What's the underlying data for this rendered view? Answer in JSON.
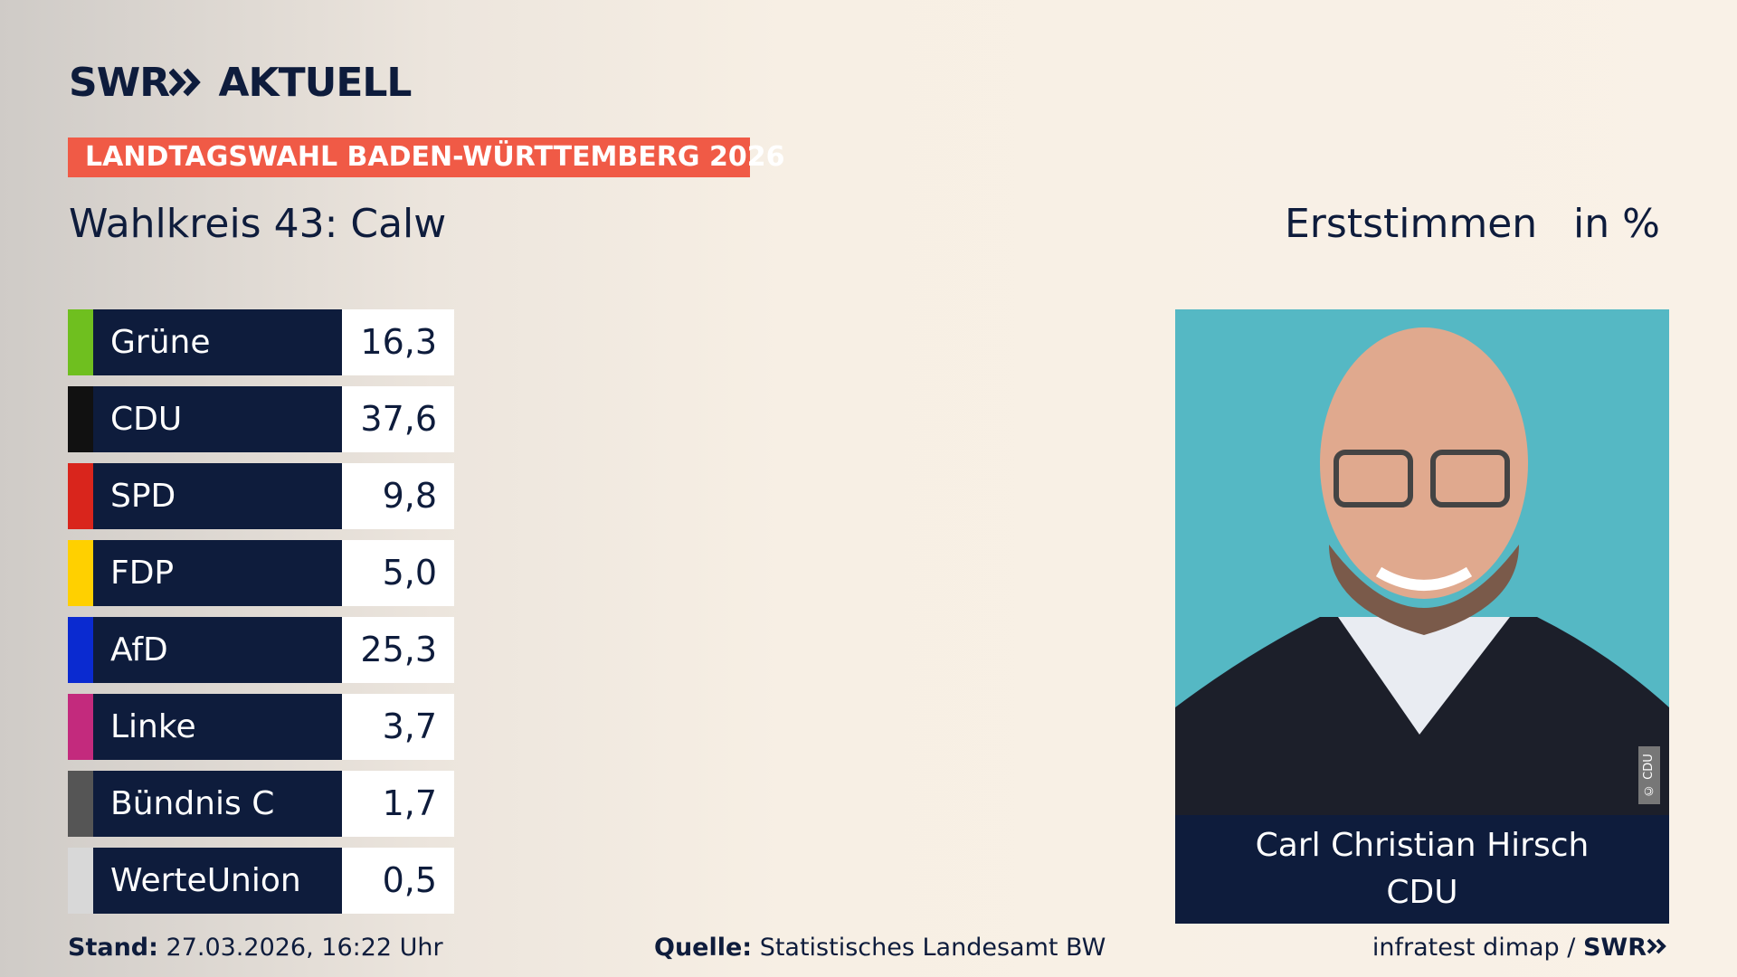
{
  "header": {
    "logo": "SWR",
    "brand": "AKTUELL",
    "banner": "LANDTAGSWAHL BADEN-WÜRTTEMBERG 2026",
    "district": "Wahlkreis 43: Calw",
    "vote_type": "Erststimmen",
    "unit": "in %"
  },
  "table": {
    "rows": [
      {
        "party": "Grüne",
        "color": "#6fbf1f",
        "value": "16,3"
      },
      {
        "party": "CDU",
        "color": "#111111",
        "value": "37,6"
      },
      {
        "party": "SPD",
        "color": "#d9251c",
        "value": "9,8"
      },
      {
        "party": "FDP",
        "color": "#ffd000",
        "value": "5,0"
      },
      {
        "party": "AfD",
        "color": "#0a2ad0",
        "value": "25,3"
      },
      {
        "party": "Linke",
        "color": "#c32a7d",
        "value": "3,7"
      },
      {
        "party": "Bündnis C",
        "color": "#555555",
        "value": "1,7"
      },
      {
        "party": "WerteUnion",
        "color": "#d8d8d8",
        "value": "0,5"
      }
    ]
  },
  "candidate": {
    "name": "Carl Christian Hirsch",
    "party": "CDU",
    "credit": "© CDU"
  },
  "footer": {
    "stand_label": "Stand:",
    "stand": "27.03.2026, 16:22 Uhr",
    "source_label": "Quelle:",
    "source": "Statistisches Landesamt BW",
    "credit": "infratest dimap /",
    "logo": "SWR"
  }
}
